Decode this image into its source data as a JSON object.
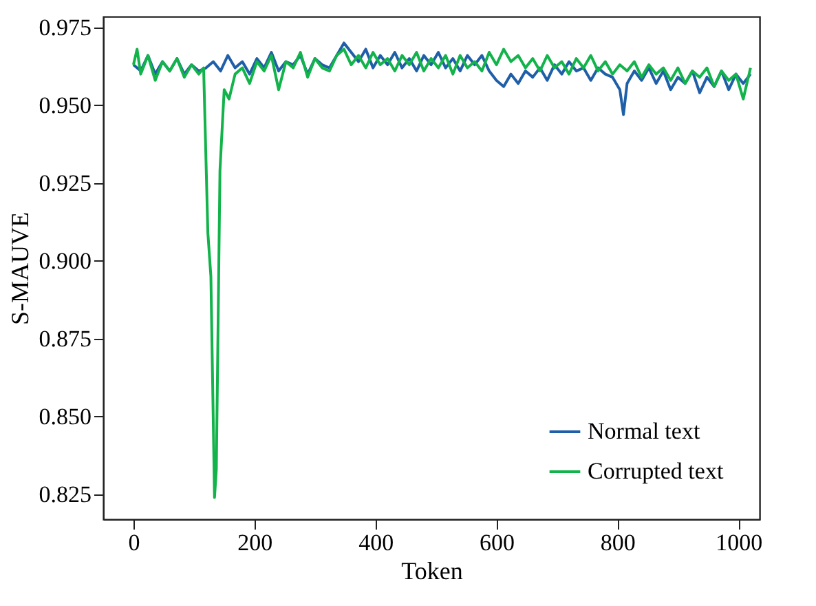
{
  "chart_data": {
    "type": "line",
    "xlabel": "Token",
    "ylabel": "S-MAUVE",
    "xlim": [
      -50,
      1035
    ],
    "ylim": [
      0.817,
      0.9785
    ],
    "xticks": [
      0,
      200,
      400,
      600,
      800,
      1000
    ],
    "yticks": [
      0.825,
      {
        "value": 0.85,
        "label": "0.850"
      },
      0.875,
      {
        "value": 0.9,
        "label": "0.900"
      },
      0.925,
      {
        "value": 0.95,
        "label": "0.950"
      },
      0.975
    ],
    "legend": "bottom right",
    "grid": false,
    "series": [
      {
        "name": "Normal text",
        "color": "#1f5fa8",
        "x": [
          0,
          12,
          24,
          36,
          48,
          60,
          72,
          84,
          96,
          108,
          120,
          132,
          144,
          156,
          168,
          180,
          192,
          204,
          216,
          228,
          240,
          252,
          264,
          276,
          288,
          300,
          312,
          324,
          336,
          348,
          360,
          372,
          384,
          396,
          408,
          420,
          432,
          444,
          456,
          468,
          480,
          492,
          504,
          516,
          528,
          540,
          552,
          564,
          576,
          588,
          600,
          612,
          624,
          636,
          648,
          660,
          672,
          684,
          696,
          708,
          720,
          732,
          744,
          756,
          768,
          780,
          792,
          804,
          810,
          816,
          828,
          840,
          852,
          864,
          876,
          888,
          900,
          912,
          924,
          936,
          948,
          960,
          972,
          984,
          996,
          1008,
          1020
        ],
        "values": [
          0.963,
          0.961,
          0.966,
          0.96,
          0.964,
          0.961,
          0.965,
          0.96,
          0.963,
          0.961,
          0.962,
          0.964,
          0.961,
          0.966,
          0.962,
          0.964,
          0.96,
          0.965,
          0.962,
          0.967,
          0.961,
          0.964,
          0.963,
          0.966,
          0.96,
          0.965,
          0.963,
          0.962,
          0.966,
          0.97,
          0.967,
          0.964,
          0.968,
          0.962,
          0.966,
          0.963,
          0.967,
          0.962,
          0.965,
          0.961,
          0.966,
          0.963,
          0.967,
          0.962,
          0.965,
          0.961,
          0.966,
          0.963,
          0.966,
          0.961,
          0.958,
          0.956,
          0.96,
          0.957,
          0.961,
          0.959,
          0.962,
          0.958,
          0.963,
          0.96,
          0.964,
          0.961,
          0.962,
          0.958,
          0.962,
          0.96,
          0.959,
          0.955,
          0.947,
          0.957,
          0.961,
          0.958,
          0.962,
          0.957,
          0.961,
          0.955,
          0.959,
          0.957,
          0.961,
          0.954,
          0.959,
          0.956,
          0.961,
          0.955,
          0.96,
          0.957,
          0.96
        ]
      },
      {
        "name": "Corrupted text",
        "color": "#12b34a",
        "x": [
          0,
          6,
          12,
          24,
          36,
          48,
          60,
          72,
          84,
          96,
          108,
          116,
          123,
          128,
          134,
          137,
          143,
          150,
          158,
          168,
          180,
          192,
          204,
          216,
          228,
          240,
          252,
          264,
          276,
          288,
          300,
          312,
          324,
          336,
          348,
          360,
          372,
          384,
          396,
          408,
          420,
          432,
          444,
          456,
          468,
          480,
          492,
          504,
          516,
          528,
          540,
          552,
          564,
          576,
          588,
          600,
          612,
          624,
          636,
          648,
          660,
          672,
          684,
          696,
          708,
          720,
          732,
          744,
          756,
          768,
          780,
          792,
          804,
          816,
          828,
          840,
          852,
          864,
          876,
          888,
          900,
          912,
          924,
          936,
          948,
          960,
          972,
          984,
          996,
          1008,
          1020
        ],
        "values": [
          0.963,
          0.968,
          0.96,
          0.966,
          0.958,
          0.964,
          0.961,
          0.965,
          0.959,
          0.963,
          0.96,
          0.962,
          0.909,
          0.895,
          0.824,
          0.833,
          0.929,
          0.955,
          0.952,
          0.96,
          0.962,
          0.957,
          0.964,
          0.961,
          0.966,
          0.955,
          0.964,
          0.962,
          0.967,
          0.959,
          0.965,
          0.962,
          0.961,
          0.966,
          0.968,
          0.963,
          0.966,
          0.962,
          0.967,
          0.963,
          0.965,
          0.961,
          0.966,
          0.963,
          0.967,
          0.961,
          0.965,
          0.962,
          0.966,
          0.96,
          0.966,
          0.962,
          0.964,
          0.961,
          0.967,
          0.963,
          0.968,
          0.964,
          0.966,
          0.962,
          0.965,
          0.961,
          0.966,
          0.962,
          0.964,
          0.96,
          0.965,
          0.962,
          0.966,
          0.961,
          0.964,
          0.96,
          0.963,
          0.961,
          0.964,
          0.959,
          0.963,
          0.96,
          0.962,
          0.958,
          0.962,
          0.957,
          0.961,
          0.959,
          0.962,
          0.956,
          0.961,
          0.958,
          0.96,
          0.952,
          0.962
        ]
      }
    ]
  }
}
